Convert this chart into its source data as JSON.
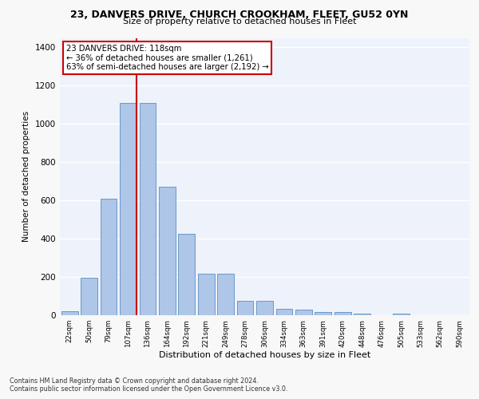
{
  "title1": "23, DANVERS DRIVE, CHURCH CROOKHAM, FLEET, GU52 0YN",
  "title2": "Size of property relative to detached houses in Fleet",
  "xlabel": "Distribution of detached houses by size in Fleet",
  "ylabel": "Number of detached properties",
  "categories": [
    "22sqm",
    "50sqm",
    "79sqm",
    "107sqm",
    "136sqm",
    "164sqm",
    "192sqm",
    "221sqm",
    "249sqm",
    "278sqm",
    "306sqm",
    "334sqm",
    "363sqm",
    "391sqm",
    "420sqm",
    "448sqm",
    "476sqm",
    "505sqm",
    "533sqm",
    "562sqm",
    "590sqm"
  ],
  "values": [
    20,
    195,
    610,
    1110,
    1110,
    670,
    425,
    215,
    215,
    75,
    75,
    35,
    30,
    15,
    15,
    10,
    0,
    10,
    0,
    0,
    0
  ],
  "bar_color": "#aec6e8",
  "bar_edge_color": "#5a8fc2",
  "annotation_text": "23 DANVERS DRIVE: 118sqm\n← 36% of detached houses are smaller (1,261)\n63% of semi-detached houses are larger (2,192) →",
  "annotation_box_color": "#ffffff",
  "annotation_border_color": "#cc0000",
  "vline_color": "#cc0000",
  "vline_x": 3.42,
  "ylim": [
    0,
    1450
  ],
  "yticks": [
    0,
    200,
    400,
    600,
    800,
    1000,
    1200,
    1400
  ],
  "background_color": "#eef2fb",
  "grid_color": "#ffffff",
  "fig_bg_color": "#f8f8f8",
  "footer1": "Contains HM Land Registry data © Crown copyright and database right 2024.",
  "footer2": "Contains public sector information licensed under the Open Government Licence v3.0."
}
